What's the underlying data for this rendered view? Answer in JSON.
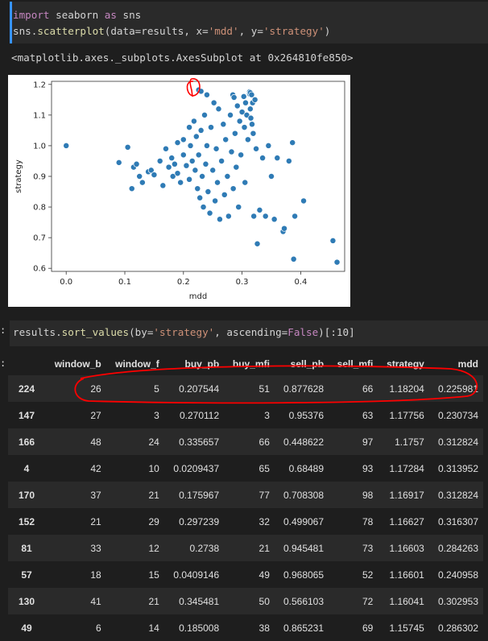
{
  "cell1": {
    "line1": [
      {
        "t": "import",
        "c": "kw"
      },
      {
        "t": " seaborn ",
        "c": "pl"
      },
      {
        "t": "as",
        "c": "kw"
      },
      {
        "t": " sns",
        "c": "pl"
      }
    ],
    "line2": [
      {
        "t": "sns.",
        "c": "pl"
      },
      {
        "t": "scatterplot",
        "c": "fn"
      },
      {
        "t": "(data",
        "c": "pl"
      },
      {
        "t": "=",
        "c": "op"
      },
      {
        "t": "results, x",
        "c": "pl"
      },
      {
        "t": "=",
        "c": "op"
      },
      {
        "t": "'mdd'",
        "c": "str"
      },
      {
        "t": ", y",
        "c": "pl"
      },
      {
        "t": "=",
        "c": "op"
      },
      {
        "t": "'strategy'",
        "c": "str"
      },
      {
        "t": ")",
        "c": "pl"
      }
    ]
  },
  "output_repr": "<matplotlib.axes._subplots.AxesSubplot at 0x264810fe850>",
  "cell2": {
    "gutter": ":",
    "line1": [
      {
        "t": "results.",
        "c": "pl"
      },
      {
        "t": "sort_values",
        "c": "fn"
      },
      {
        "t": "(by",
        "c": "pl"
      },
      {
        "t": "=",
        "c": "op"
      },
      {
        "t": "'strategy'",
        "c": "str"
      },
      {
        "t": ", ascending",
        "c": "pl"
      },
      {
        "t": "=",
        "c": "op"
      },
      {
        "t": "False",
        "c": "kw"
      },
      {
        "t": ")[:10]",
        "c": "pl"
      }
    ]
  },
  "table": {
    "gutter": ":",
    "columns": [
      "",
      "window_b",
      "window_f",
      "buy_pb",
      "buy_mfi",
      "sell_pb",
      "sell_mfi",
      "strategy",
      "mdd"
    ],
    "rows": [
      [
        "224",
        "26",
        "5",
        "0.207544",
        "51",
        "0.877628",
        "66",
        "1.18204",
        "0.225981"
      ],
      [
        "147",
        "27",
        "3",
        "0.270112",
        "3",
        "0.95376",
        "63",
        "1.17756",
        "0.230734"
      ],
      [
        "166",
        "48",
        "24",
        "0.335657",
        "66",
        "0.448622",
        "97",
        "1.1757",
        "0.312824"
      ],
      [
        "4",
        "42",
        "10",
        "0.0209437",
        "65",
        "0.68489",
        "93",
        "1.17284",
        "0.313952"
      ],
      [
        "170",
        "37",
        "21",
        "0.175967",
        "77",
        "0.708308",
        "98",
        "1.16917",
        "0.312824"
      ],
      [
        "152",
        "21",
        "29",
        "0.297239",
        "32",
        "0.499067",
        "78",
        "1.16627",
        "0.316307"
      ],
      [
        "81",
        "33",
        "12",
        "0.2738",
        "21",
        "0.945481",
        "73",
        "1.16603",
        "0.284263"
      ],
      [
        "57",
        "18",
        "15",
        "0.0409146",
        "49",
        "0.968065",
        "52",
        "1.16601",
        "0.240958"
      ],
      [
        "130",
        "41",
        "21",
        "0.345481",
        "50",
        "0.566103",
        "72",
        "1.16041",
        "0.302953"
      ],
      [
        "49",
        "6",
        "14",
        "0.185008",
        "38",
        "0.865231",
        "69",
        "1.15745",
        "0.286302"
      ]
    ]
  },
  "chart_data": {
    "type": "scatter",
    "xlabel": "mdd",
    "ylabel": "strategy",
    "xlim": [
      -0.025,
      0.475
    ],
    "ylim": [
      0.59,
      1.21
    ],
    "xticks": [
      "0.0",
      "0.1",
      "0.2",
      "0.3",
      "0.4"
    ],
    "yticks": [
      "0.6",
      "0.7",
      "0.8",
      "0.9",
      "1.0",
      "1.1",
      "1.2"
    ],
    "grid": false,
    "marker_color": "#2f7bb5",
    "points": [
      [
        0.0,
        1.0
      ],
      [
        0.09,
        0.945
      ],
      [
        0.105,
        0.995
      ],
      [
        0.112,
        0.86
      ],
      [
        0.115,
        0.93
      ],
      [
        0.12,
        0.94
      ],
      [
        0.125,
        0.9
      ],
      [
        0.13,
        0.88
      ],
      [
        0.14,
        0.915
      ],
      [
        0.145,
        0.92
      ],
      [
        0.15,
        0.905
      ],
      [
        0.16,
        0.95
      ],
      [
        0.165,
        0.87
      ],
      [
        0.17,
        0.99
      ],
      [
        0.175,
        0.93
      ],
      [
        0.18,
        0.96
      ],
      [
        0.182,
        0.9
      ],
      [
        0.185,
        0.94
      ],
      [
        0.19,
        0.91
      ],
      [
        0.19,
        1.01
      ],
      [
        0.195,
        0.88
      ],
      [
        0.2,
        1.02
      ],
      [
        0.2,
        0.97
      ],
      [
        0.205,
        0.935
      ],
      [
        0.21,
        1.06
      ],
      [
        0.21,
        0.89
      ],
      [
        0.212,
        1.0
      ],
      [
        0.215,
        0.95
      ],
      [
        0.218,
        1.08
      ],
      [
        0.22,
        0.92
      ],
      [
        0.222,
        1.03
      ],
      [
        0.224,
        0.86
      ],
      [
        0.225981,
        1.18204
      ],
      [
        0.226,
        0.97
      ],
      [
        0.228,
        0.83
      ],
      [
        0.23,
        1.17756
      ],
      [
        0.23,
        1.05
      ],
      [
        0.232,
        0.9
      ],
      [
        0.234,
        0.8
      ],
      [
        0.236,
        1.1
      ],
      [
        0.238,
        0.94
      ],
      [
        0.24,
        1.16601
      ],
      [
        0.24,
        1.0
      ],
      [
        0.242,
        0.85
      ],
      [
        0.245,
        0.78
      ],
      [
        0.247,
        1.06
      ],
      [
        0.25,
        0.92
      ],
      [
        0.252,
        1.14
      ],
      [
        0.254,
        0.82
      ],
      [
        0.256,
        0.99
      ],
      [
        0.258,
        0.88
      ],
      [
        0.26,
        1.12
      ],
      [
        0.262,
        0.76
      ],
      [
        0.265,
        0.95
      ],
      [
        0.268,
        1.07
      ],
      [
        0.27,
        0.84
      ],
      [
        0.272,
        1.02
      ],
      [
        0.275,
        0.9
      ],
      [
        0.277,
        0.77
      ],
      [
        0.28,
        1.1
      ],
      [
        0.282,
        0.98
      ],
      [
        0.284263,
        1.16603
      ],
      [
        0.285,
        0.86
      ],
      [
        0.286302,
        1.15745
      ],
      [
        0.288,
        1.04
      ],
      [
        0.29,
        0.93
      ],
      [
        0.292,
        1.13
      ],
      [
        0.294,
        0.8
      ],
      [
        0.296,
        1.08
      ],
      [
        0.298,
        0.97
      ],
      [
        0.3,
        1.11
      ],
      [
        0.302953,
        1.16041
      ],
      [
        0.304,
        1.06
      ],
      [
        0.305,
        0.88
      ],
      [
        0.306,
        1.14
      ],
      [
        0.308,
        1.1
      ],
      [
        0.31,
        1.02
      ],
      [
        0.312824,
        1.1757
      ],
      [
        0.312824,
        1.16917
      ],
      [
        0.313952,
        1.17284
      ],
      [
        0.314,
        1.12
      ],
      [
        0.315,
        1.09
      ],
      [
        0.316307,
        1.16627
      ],
      [
        0.317,
        1.07
      ],
      [
        0.318,
        1.14
      ],
      [
        0.319,
        1.04
      ],
      [
        0.32,
        0.77
      ],
      [
        0.322,
        1.15
      ],
      [
        0.324,
        0.99
      ],
      [
        0.326,
        0.68
      ],
      [
        0.33,
        0.79
      ],
      [
        0.335,
        0.96
      ],
      [
        0.34,
        0.77
      ],
      [
        0.345,
        1.0
      ],
      [
        0.35,
        0.9
      ],
      [
        0.355,
        0.76
      ],
      [
        0.36,
        0.96
      ],
      [
        0.37,
        0.72
      ],
      [
        0.372,
        0.73
      ],
      [
        0.38,
        0.95
      ],
      [
        0.386,
        1.01
      ],
      [
        0.388,
        0.63
      ],
      [
        0.39,
        0.77
      ],
      [
        0.405,
        0.82
      ],
      [
        0.455,
        0.69
      ],
      [
        0.462,
        0.62
      ]
    ]
  }
}
